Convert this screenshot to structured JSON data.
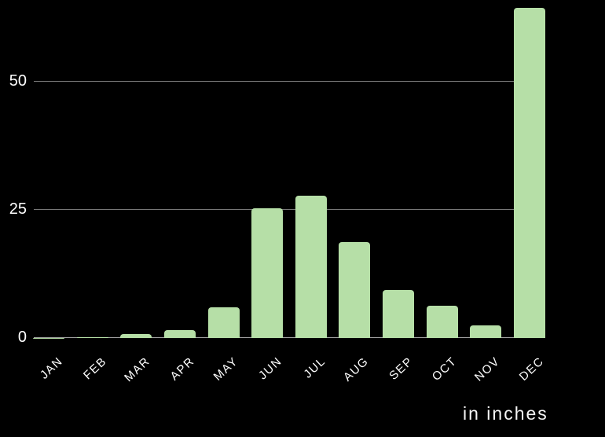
{
  "chart_data": {
    "type": "bar",
    "title": "",
    "categories": [
      "JAN",
      "FEB",
      "MAR",
      "APR",
      "MAY",
      "JUN",
      "JUL",
      "AUG",
      "SEP",
      "OCT",
      "NOV",
      "DEC"
    ],
    "values": [
      0.05,
      0.15,
      0.75,
      1.5,
      6.0,
      25.3,
      27.8,
      18.7,
      9.3,
      6.3,
      2.5,
      64.4
    ],
    "unit_label": "in inches",
    "xlabel": "",
    "ylabel": "",
    "yticks": [
      {
        "value": 0,
        "label": "0"
      },
      {
        "value": 25,
        "label": "25"
      },
      {
        "value": 50,
        "label": "50"
      }
    ],
    "ylim": [
      0,
      65.9
    ],
    "grid": true,
    "legend": false,
    "colors": {
      "background": "#000000",
      "bar": "#b6dfa7",
      "gridline": "#787878",
      "baseline": "#9e9e9e",
      "text": "#ffffff"
    }
  }
}
